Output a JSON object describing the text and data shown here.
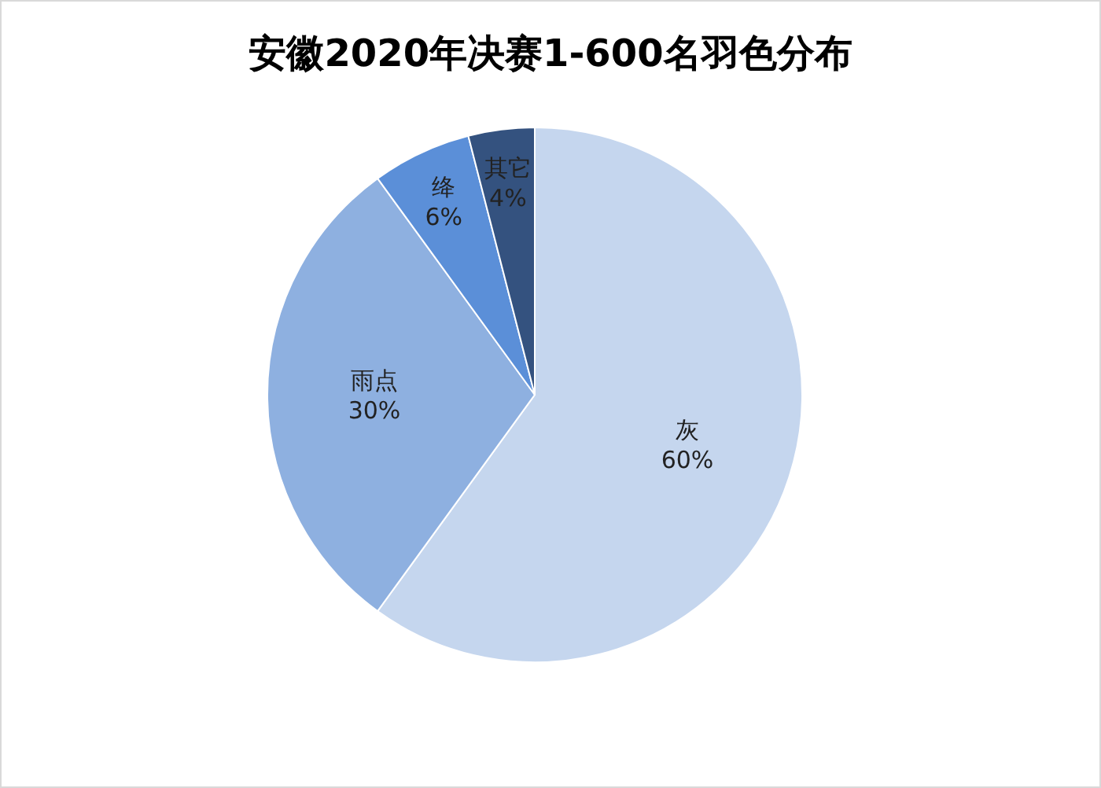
{
  "chart_data": {
    "type": "pie",
    "title": "安徽2020年决赛1-600名羽色分布",
    "categories": [
      "灰",
      "雨点",
      "绛",
      "其它"
    ],
    "values": [
      60,
      30,
      6,
      4
    ],
    "colors": [
      "#c5d6ee",
      "#8eb0e0",
      "#5b8fd8",
      "#34527f"
    ],
    "value_labels": [
      "60%",
      "30%",
      "6%",
      "4%"
    ]
  }
}
